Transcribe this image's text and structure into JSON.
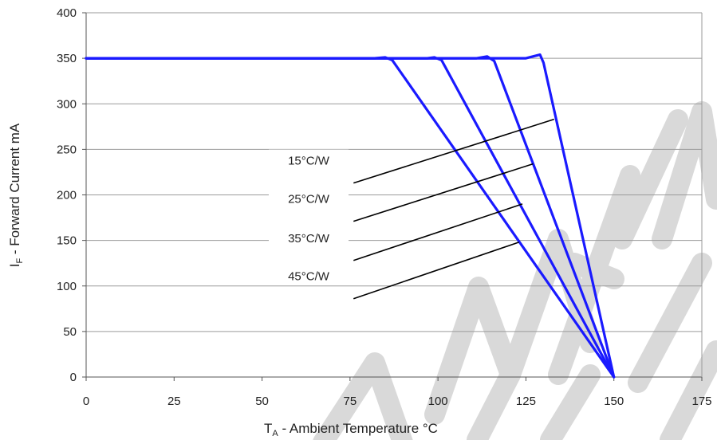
{
  "chart_data": {
    "type": "line",
    "xlabel": {
      "main": "T",
      "sub": "A",
      "rest": " - Ambient Temperature °C"
    },
    "ylabel": {
      "main": "I",
      "sub": "F",
      "rest": " - Forward Current mA"
    },
    "xlim": [
      0,
      175
    ],
    "ylim": [
      0,
      400
    ],
    "xticks": [
      0,
      25,
      50,
      75,
      100,
      125,
      150,
      175
    ],
    "yticks": [
      0,
      50,
      100,
      150,
      200,
      250,
      300,
      350,
      400
    ],
    "grid": "horizontal",
    "series": [
      {
        "name": "45°C/W",
        "x": [
          0,
          82,
          85,
          87,
          150
        ],
        "y": [
          350,
          350,
          351,
          348,
          0
        ]
      },
      {
        "name": "35°C/W",
        "x": [
          0,
          97,
          99,
          101,
          150
        ],
        "y": [
          350,
          350,
          351,
          348,
          0
        ]
      },
      {
        "name": "25°C/W",
        "x": [
          0,
          111,
          114,
          116,
          150
        ],
        "y": [
          350,
          350,
          352,
          347,
          0
        ]
      },
      {
        "name": "15°C/W",
        "x": [
          0,
          125,
          129,
          130,
          150
        ],
        "y": [
          350,
          350,
          354,
          345,
          0
        ]
      }
    ],
    "annotations": [
      {
        "text": "15°C/W",
        "line_from": [
          76,
          213
        ],
        "line_to": [
          133,
          283
        ]
      },
      {
        "text": "25°C/W",
        "line_from": [
          76,
          171
        ],
        "line_to": [
          127,
          234
        ]
      },
      {
        "text": "35°C/W",
        "line_from": [
          76,
          128
        ],
        "line_to": [
          124,
          190
        ]
      },
      {
        "text": "45°C/W",
        "line_from": [
          76,
          86
        ],
        "line_to": [
          123,
          148
        ]
      }
    ],
    "colors": {
      "series": "#1a1aff",
      "grid": "#9a9a9a",
      "axis": "#555555",
      "annotation_line": "#000000",
      "watermark": "#d9d9d9"
    }
  }
}
